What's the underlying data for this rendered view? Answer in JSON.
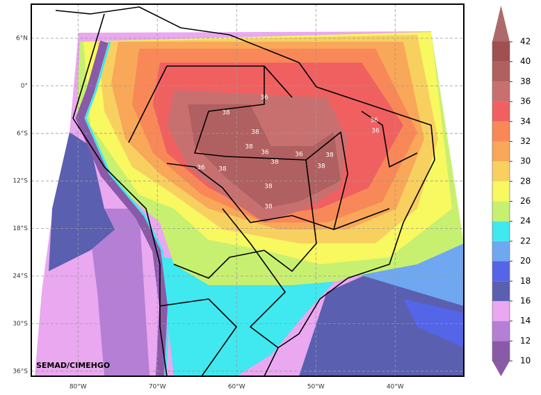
{
  "map": {
    "lat_ticks": [
      {
        "value": 6,
        "label": "6°N"
      },
      {
        "value": 0,
        "label": "0°"
      },
      {
        "value": -6,
        "label": "6°S"
      },
      {
        "value": -12,
        "label": "12°S"
      },
      {
        "value": -18,
        "label": "18°S"
      },
      {
        "value": -24,
        "label": "24°S"
      },
      {
        "value": -30,
        "label": "30°S"
      },
      {
        "value": -36,
        "label": "36°S"
      }
    ],
    "lon_ticks": [
      {
        "value": -80,
        "label": "80°W"
      },
      {
        "value": -70,
        "label": "70°W"
      },
      {
        "value": -60,
        "label": "60°W"
      },
      {
        "value": -50,
        "label": "50°W"
      },
      {
        "value": -40,
        "label": "40°W"
      }
    ],
    "credit": "SEMAD/CIMEHGO",
    "contour_labels": [
      36,
      38,
      38,
      38,
      36,
      38,
      36,
      38,
      38,
      36,
      36,
      36,
      38,
      38,
      38
    ]
  },
  "colorbar": {
    "levels": [
      10,
      12,
      14,
      16,
      18,
      20,
      22,
      24,
      26,
      28,
      30,
      32,
      34,
      36,
      38,
      40,
      42
    ],
    "colors": [
      "#8a5aa8",
      "#b57fd6",
      "#e9a8ef",
      "#5a5fb0",
      "#5565e8",
      "#6fa8f0",
      "#40e8f0",
      "#c8f070",
      "#f8f860",
      "#f8d060",
      "#f8a858",
      "#f88858",
      "#f06060",
      "#c87070",
      "#b06060",
      "#a05050"
    ]
  }
}
